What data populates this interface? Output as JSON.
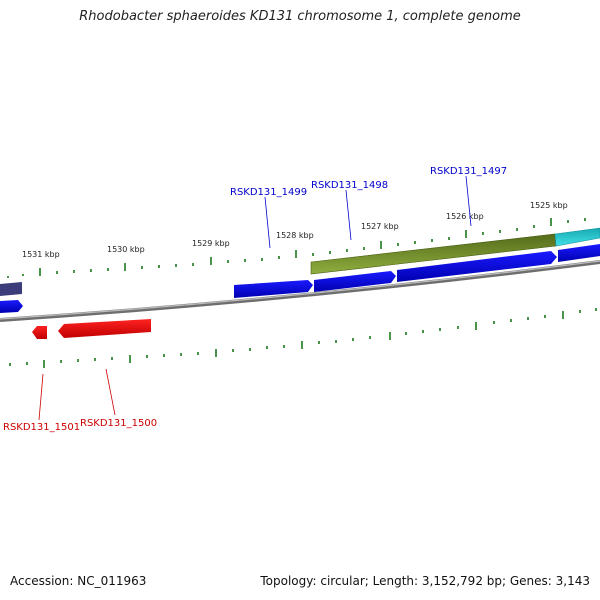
{
  "title": "Rhodobacter sphaeroides KD131 chromosome 1, complete genome",
  "footer": {
    "accession": "Accession: NC_011963",
    "summary": "Topology: circular; Length: 3,152,792 bp; Genes: 3,143"
  },
  "scale_labels": [
    "1531 kbp",
    "1530 kbp",
    "1529 kbp",
    "1528 kbp",
    "1527 kbp",
    "1526 kbp",
    "1525 kbp"
  ],
  "gene_labels": {
    "RSKD131_1499": "RSKD131_1499",
    "RSKD131_1498": "RSKD131_1498",
    "RSKD131_1497": "RSKD131_1497",
    "RSKD131_1501": "RSKD131_1501",
    "RSKD131_1500": "RSKD131_1500"
  },
  "colors": {
    "forward_gene": "#0000ee",
    "reverse_gene": "#ee0000",
    "olive_feature": "#6b8e23",
    "cyan_feature": "#20c0c8",
    "dark_feature": "#3c3c7a",
    "backbone": "#888888",
    "ticks": "#1a7a1a"
  }
}
